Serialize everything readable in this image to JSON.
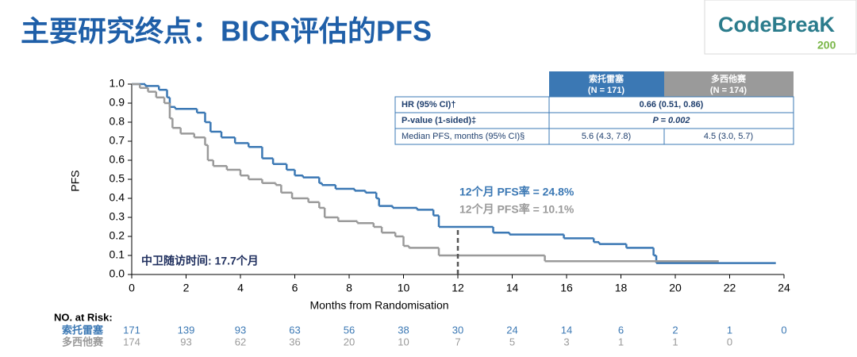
{
  "title": "主要研究终点：BICR评估的PFS",
  "logo": {
    "text": "CodeBreaK",
    "sub": "200"
  },
  "table": {
    "header": [
      {
        "name": "索托雷塞",
        "n": "(N = 171)"
      },
      {
        "name": "多西他赛",
        "n": "(N = 174)"
      }
    ],
    "rows": [
      [
        "HR (95% CI)†",
        "0.66 (0.51, 0.86)"
      ],
      [
        "P-value (1-sided)‡",
        "P = 0.002"
      ],
      [
        "Median PFS, months (95% CI)§",
        "5.6 (4.3, 7.8)",
        "4.5 (3.0, 5.7)"
      ]
    ]
  },
  "chart_data": {
    "type": "line",
    "xlabel": "Months from Randomisation",
    "ylabel": "PFS",
    "xlim": [
      0,
      24
    ],
    "ylim": [
      0,
      1
    ],
    "xticks": [
      0,
      2,
      4,
      6,
      8,
      10,
      12,
      14,
      16,
      18,
      20,
      22,
      24
    ],
    "yticks": [
      {
        "value": 0,
        "label": "0.0"
      },
      {
        "value": 0.1,
        "label": "0.1"
      },
      {
        "value": 0.2,
        "label": "0.2"
      },
      {
        "value": 0.3,
        "label": "0.3"
      },
      {
        "value": 0.4,
        "label": "0.4"
      },
      {
        "value": 0.5,
        "label": "0.5"
      },
      {
        "value": 0.6,
        "label": "0.6"
      },
      {
        "value": 0.7,
        "label": "0.7"
      },
      {
        "value": 0.8,
        "label": "0.8"
      },
      {
        "value": 0.9,
        "label": "0.9"
      },
      {
        "value": 1,
        "label": "1.0"
      }
    ],
    "annotations": [
      "12个月 PFS率 = 24.8%",
      "12个月 PFS率 = 10.1%",
      "中卫随访时间: 17.7个月"
    ],
    "at_risk_label": "NO. at Risk:",
    "series": [
      {
        "name": "索托雷塞",
        "color": "#3b78b4",
        "x": [
          0,
          0.5,
          1.0,
          1.3,
          1.4,
          1.6,
          2.4,
          2.7,
          2.9,
          3.3,
          3.8,
          4.3,
          4.8,
          5.2,
          5.7,
          6.0,
          6.3,
          6.9,
          7.0,
          7.5,
          8.2,
          8.6,
          9.0,
          9.1,
          9.6,
          10.5,
          11.1,
          11.3,
          13.3,
          13.9,
          15.9,
          17.0,
          17.2,
          18.2,
          19.2,
          19.3,
          23.7
        ],
        "values": [
          1.0,
          0.99,
          0.97,
          0.93,
          0.88,
          0.87,
          0.85,
          0.8,
          0.75,
          0.72,
          0.69,
          0.67,
          0.61,
          0.58,
          0.55,
          0.52,
          0.51,
          0.48,
          0.47,
          0.45,
          0.44,
          0.43,
          0.4,
          0.36,
          0.35,
          0.34,
          0.31,
          0.25,
          0.22,
          0.21,
          0.19,
          0.17,
          0.16,
          0.14,
          0.1,
          0.06,
          0.06
        ],
        "at_risk": [
          171,
          139,
          93,
          63,
          56,
          38,
          30,
          24,
          14,
          6,
          2,
          1,
          0
        ]
      },
      {
        "name": "多西他赛",
        "color": "#9a9a9a",
        "x": [
          0,
          0.3,
          0.6,
          0.9,
          1.2,
          1.4,
          1.5,
          1.8,
          2.3,
          2.7,
          2.8,
          3.0,
          3.5,
          4.0,
          4.3,
          4.8,
          5.3,
          5.5,
          5.9,
          6.5,
          6.9,
          7.1,
          7.6,
          8.3,
          8.9,
          9.2,
          9.7,
          10.0,
          10.2,
          11.3,
          15.2,
          21.6
        ],
        "values": [
          1.0,
          0.98,
          0.96,
          0.93,
          0.9,
          0.82,
          0.77,
          0.74,
          0.72,
          0.68,
          0.6,
          0.57,
          0.55,
          0.52,
          0.5,
          0.48,
          0.47,
          0.43,
          0.4,
          0.38,
          0.35,
          0.3,
          0.28,
          0.27,
          0.25,
          0.22,
          0.2,
          0.15,
          0.14,
          0.1,
          0.07,
          0.07
        ],
        "at_risk": [
          174,
          93,
          62,
          36,
          20,
          10,
          7,
          5,
          3,
          1,
          1,
          0,
          null
        ]
      }
    ]
  }
}
